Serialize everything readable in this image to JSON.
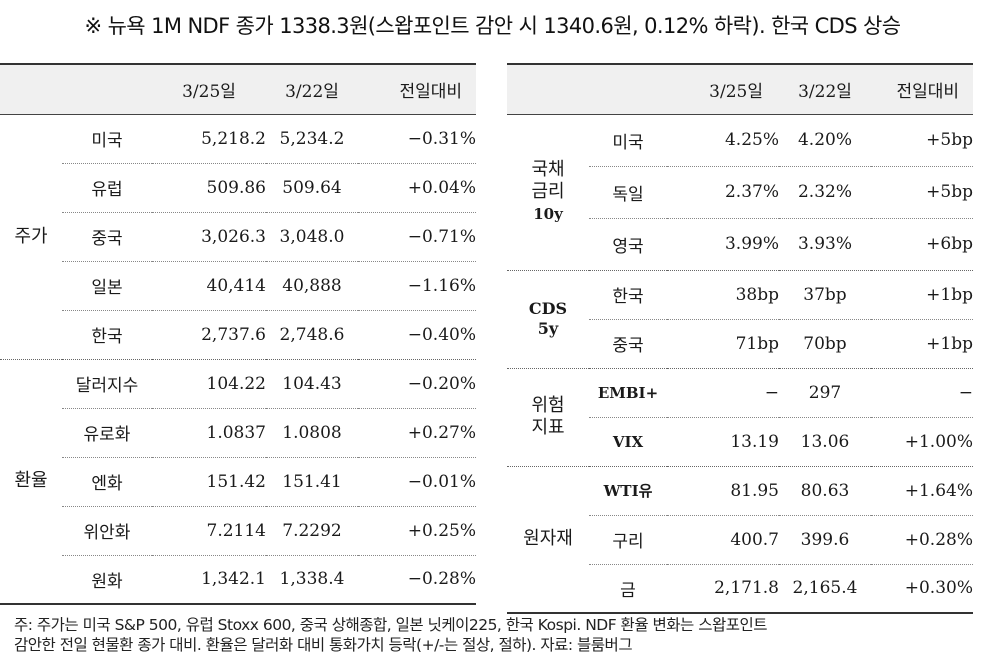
{
  "headline": "※ 뉴욕 1M NDF 종가 1338.3원(스왑포인트 감안 시 1340.6원, 0.12% 하락). 한국 CDS 상승",
  "left_table": {
    "headers": [
      "3/25일",
      "3/22일",
      "전일대비"
    ],
    "groups": [
      {
        "label": "주가",
        "rows": [
          {
            "name": "미국",
            "d325": "5,218.2",
            "d322": "5,234.2",
            "chg": "−0.31%"
          },
          {
            "name": "유럽",
            "d325": "509.86",
            "d322": "509.64",
            "chg": "+0.04%"
          },
          {
            "name": "중국",
            "d325": "3,026.3",
            "d322": "3,048.0",
            "chg": "−0.71%"
          },
          {
            "name": "일본",
            "d325": "40,414",
            "d322": "40,888",
            "chg": "−1.16%"
          },
          {
            "name": "한국",
            "d325": "2,737.6",
            "d322": "2,748.6",
            "chg": "−0.40%"
          }
        ]
      },
      {
        "label": "환율",
        "rows": [
          {
            "name": "달러지수",
            "d325": "104.22",
            "d322": "104.43",
            "chg": "−0.20%"
          },
          {
            "name": "유로화",
            "d325": "1.0837",
            "d322": "1.0808",
            "chg": "+0.27%"
          },
          {
            "name": "엔화",
            "d325": "151.42",
            "d322": "151.41",
            "chg": "−0.01%"
          },
          {
            "name": "위안화",
            "d325": "7.2114",
            "d322": "7.2292",
            "chg": "+0.25%"
          },
          {
            "name": "원화",
            "d325": "1,342.1",
            "d322": "1,338.4",
            "chg": "−0.28%"
          }
        ]
      }
    ]
  },
  "right_table": {
    "headers": [
      "3/25일",
      "3/22일",
      "전일대비"
    ],
    "groups": [
      {
        "label": "국채\n금리",
        "sublabel": "10y",
        "rows": [
          {
            "name": "미국",
            "d325": "4.25%",
            "d322": "4.20%",
            "chg": "+5bp"
          },
          {
            "name": "독일",
            "d325": "2.37%",
            "d322": "2.32%",
            "chg": "+5bp"
          },
          {
            "name": "영국",
            "d325": "3.99%",
            "d322": "3.93%",
            "chg": "+6bp"
          }
        ]
      },
      {
        "label": "CDS\n5y",
        "rows": [
          {
            "name": "한국",
            "d325": "38bp",
            "d322": "37bp",
            "chg": "+1bp"
          },
          {
            "name": "중국",
            "d325": "71bp",
            "d322": "70bp",
            "chg": "+1bp"
          }
        ]
      },
      {
        "label": "위험\n지표",
        "rows": [
          {
            "name": "EMBI+",
            "d325": "−",
            "d322": "297",
            "chg": "−"
          },
          {
            "name": "VIX",
            "d325": "13.19",
            "d322": "13.06",
            "chg": "+1.00%"
          }
        ]
      },
      {
        "label": "원자재",
        "rows": [
          {
            "name": "WTI유",
            "d325": "81.95",
            "d322": "80.63",
            "chg": "+1.64%"
          },
          {
            "name": "구리",
            "d325": "400.7",
            "d322": "399.6",
            "chg": "+0.28%"
          },
          {
            "name": "금",
            "d325": "2,171.8",
            "d322": "2,165.4",
            "chg": "+0.30%"
          }
        ]
      }
    ]
  },
  "notes": {
    "line1": "주: 주가는 미국 S&P 500, 유럽 Stoxx 600, 중국 상해종합, 일본 닛케이225, 한국 Kospi. NDF 환율 변화는 스왑포인트",
    "line2": "감안한 전일 현물환 종가 대비. 환율은 달러화 대비 통화가치 등락(+/-는 절상, 절하). 자료: 블룸버그"
  }
}
